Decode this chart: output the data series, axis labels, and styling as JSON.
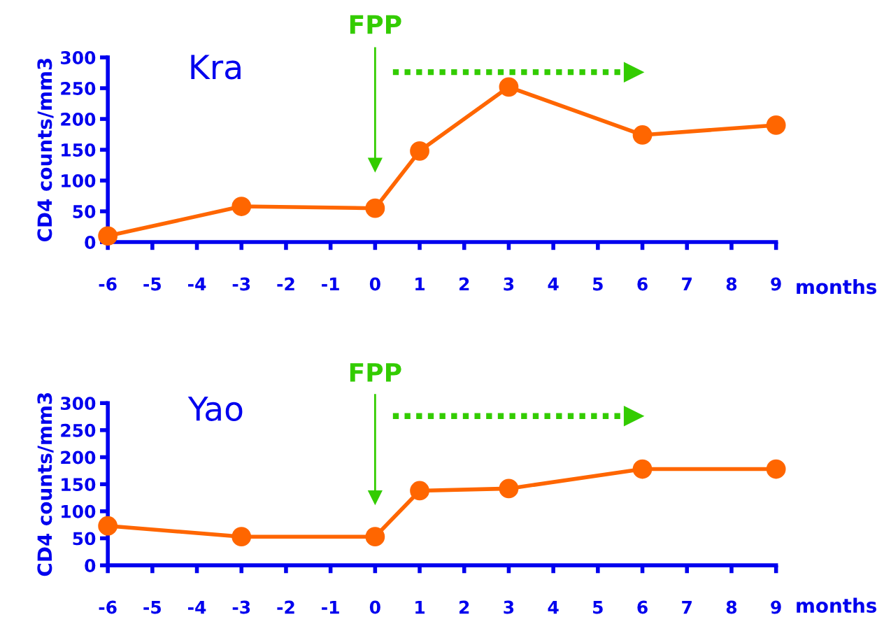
{
  "chart_data": [
    {
      "type": "line",
      "title": "Kra",
      "xlabel": "months",
      "ylabel": "CD4 counts/mm3",
      "x": [
        -6,
        -3,
        0,
        1,
        3,
        6,
        9
      ],
      "series": [
        {
          "color": "#ff6600",
          "values": [
            10,
            58,
            55,
            148,
            252,
            174,
            190
          ]
        }
      ],
      "xlim": [
        -6,
        9
      ],
      "xticks": [
        -6,
        -5,
        -4,
        -3,
        -2,
        -1,
        0,
        1,
        2,
        3,
        4,
        5,
        6,
        7,
        8,
        9
      ],
      "ylim": [
        0,
        300
      ],
      "yticks": [
        0,
        50,
        100,
        150,
        200,
        250,
        300
      ],
      "marker": "circle",
      "line_style": "solid",
      "grid": false,
      "legend": false,
      "ref_lines": [
        {
          "axis": "x",
          "value": 0,
          "label": "FPP",
          "color": "#33cc00"
        }
      ]
    },
    {
      "type": "line",
      "title": "Yao",
      "xlabel": "months",
      "ylabel": "CD4 counts/mm3",
      "x": [
        -6,
        -3,
        0,
        1,
        3,
        6,
        9
      ],
      "series": [
        {
          "color": "#ff6600",
          "values": [
            73,
            53,
            53,
            138,
            142,
            178,
            178
          ]
        }
      ],
      "xlim": [
        -6,
        9
      ],
      "xticks": [
        -6,
        -5,
        -4,
        -3,
        -2,
        -1,
        0,
        1,
        2,
        3,
        4,
        5,
        6,
        7,
        8,
        9
      ],
      "ylim": [
        0,
        300
      ],
      "yticks": [
        0,
        50,
        100,
        150,
        200,
        250,
        300
      ],
      "marker": "circle",
      "line_style": "solid",
      "grid": false,
      "legend": false,
      "ref_lines": [
        {
          "axis": "x",
          "value": 0,
          "label": "FPP",
          "color": "#33cc00"
        }
      ]
    }
  ]
}
